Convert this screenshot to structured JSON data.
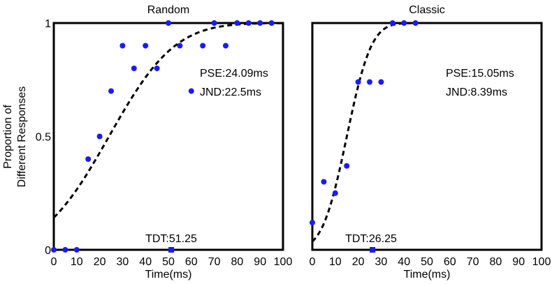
{
  "figure": {
    "ylabel_line1": "Proportion of",
    "ylabel_line2": "Different Responses"
  },
  "chart_data": [
    {
      "type": "scatter",
      "title": "Random",
      "xlabel": "Time(ms)",
      "ylabel": "Proportion of Different Responses",
      "xlim": [
        0,
        100
      ],
      "ylim": [
        0,
        1
      ],
      "x_ticks": [
        "0",
        "10",
        "20",
        "30",
        "40",
        "50",
        "60",
        "70",
        "80",
        "90",
        "100"
      ],
      "y_ticks": [
        "0",
        "0.5",
        "1"
      ],
      "grid": false,
      "point_color": "#1a1aff",
      "curve_color": "#000000",
      "series": [
        {
          "x": [
            0,
            5,
            10,
            15,
            20,
            25,
            30,
            35,
            40,
            45,
            50,
            55,
            60,
            65,
            70,
            75,
            80,
            85,
            90,
            95
          ],
          "y": [
            0,
            0,
            0,
            0.4,
            0.5,
            0.7,
            0.9,
            0.8,
            0.9,
            0.8,
            1.0,
            0.9,
            0.7,
            0.9,
            1.0,
            0.9,
            1.0,
            1.0,
            1.0,
            1.0
          ]
        }
      ],
      "fit": {
        "style": "dashed",
        "pse": 24.09,
        "jnd": 22.5
      },
      "annotations": {
        "pse": "PSE:24.09ms",
        "jnd": "JND:22.5ms",
        "tdt": "TDT:51.25",
        "tdt_value": 51.25
      }
    },
    {
      "type": "scatter",
      "title": "Classic",
      "xlabel": "Time(ms)",
      "xlim": [
        0,
        100
      ],
      "ylim": [
        0,
        1
      ],
      "x_ticks": [
        "0",
        "10",
        "20",
        "30",
        "40",
        "50",
        "60",
        "70",
        "80",
        "90",
        "100"
      ],
      "grid": false,
      "point_color": "#1a1aff",
      "curve_color": "#000000",
      "series": [
        {
          "x": [
            0,
            5,
            10,
            15,
            20,
            25,
            30,
            35,
            40,
            45
          ],
          "y": [
            0.12,
            0.3,
            0.25,
            0.37,
            0.74,
            0.74,
            0.74,
            1.0,
            1.0,
            1.0
          ]
        }
      ],
      "fit": {
        "style": "dashed",
        "pse": 15.05,
        "jnd": 8.39
      },
      "annotations": {
        "pse": "PSE:15.05ms",
        "jnd": "JND:8.39ms",
        "tdt": "TDT:26.25",
        "tdt_value": 26.25
      }
    }
  ]
}
